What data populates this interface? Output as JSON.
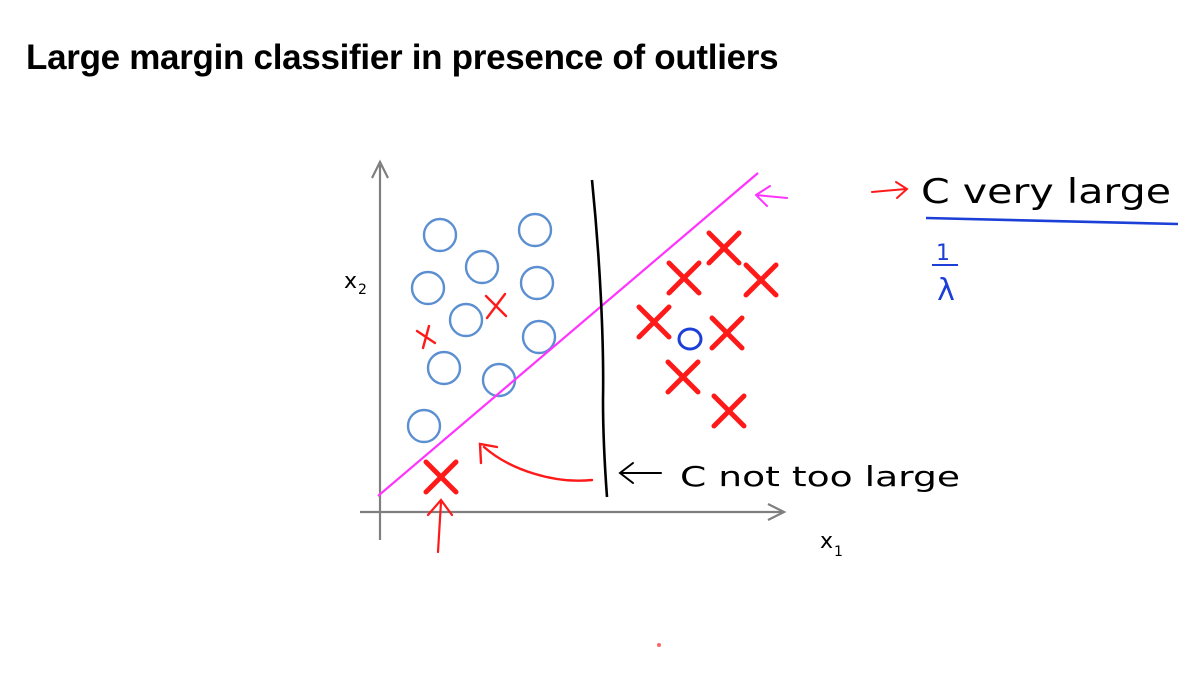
{
  "title": "Large margin classifier in presence of outliers",
  "axes": {
    "x_label": "x",
    "x_sub": "1",
    "y_label": "x",
    "y_sub": "2"
  },
  "annotations": {
    "c_very_large": "C  very  large",
    "one": "1",
    "lambda": "λ",
    "c_not_too_large": "C  not  too  large"
  },
  "colors": {
    "positive_class": "#ff1a1a",
    "negative_class": "#5b8fd1",
    "boundary_c_large": "#ff33ff",
    "boundary_c_small": "#000000",
    "annotation_red": "#ff1a1a",
    "annotation_blue": "#1c3fd8",
    "axis": "#7f7f7f"
  },
  "icons": [
    "circle-icon",
    "cross-icon",
    "arrow-icon"
  ]
}
